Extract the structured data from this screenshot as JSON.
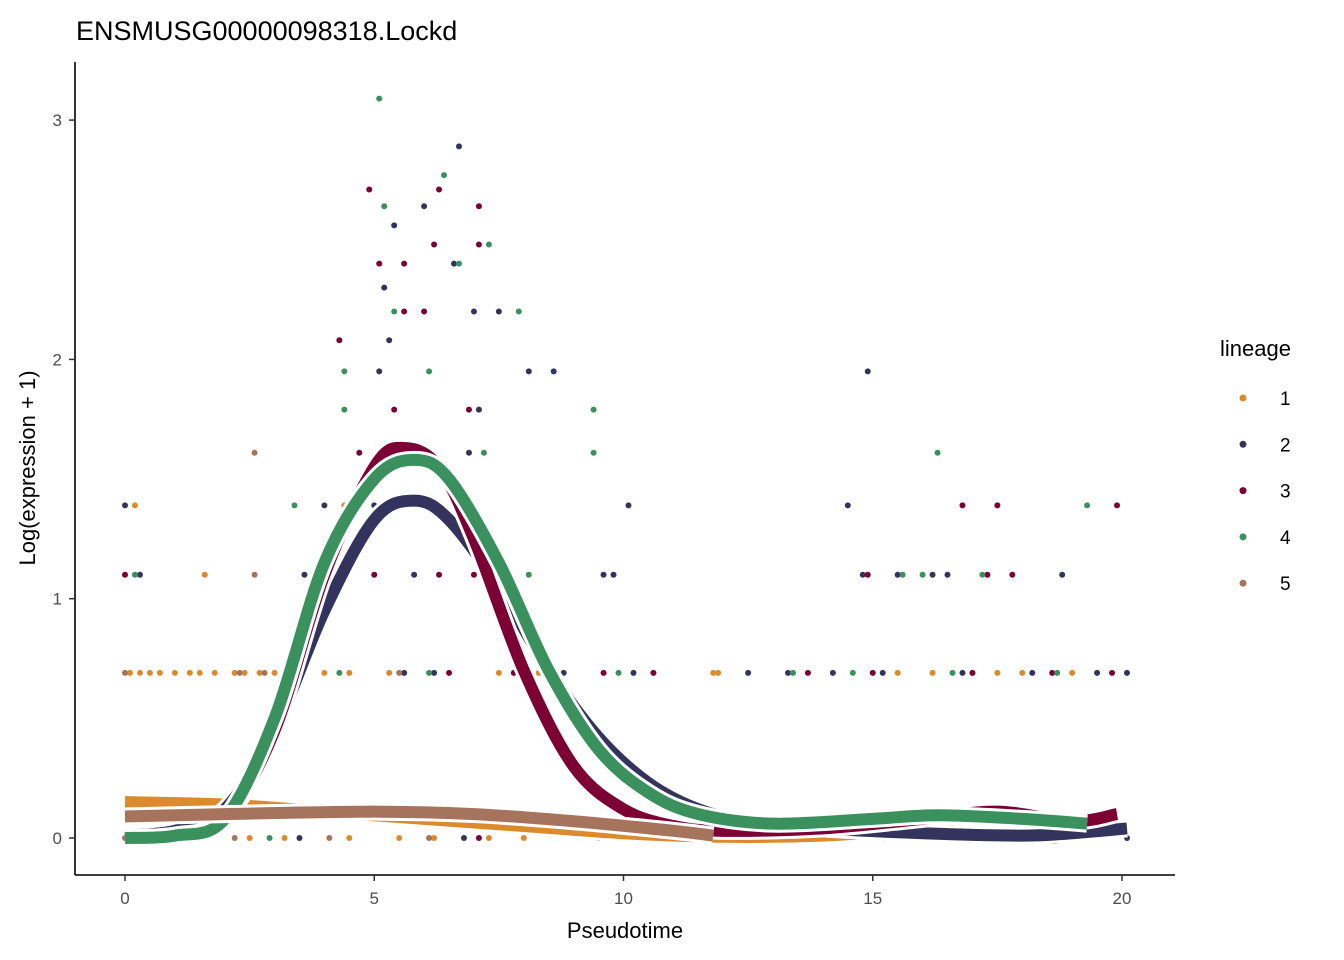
{
  "chart_data": {
    "type": "scatter",
    "title": "ENSMUSG00000098318.Lockd",
    "xlabel": "Pseudotime",
    "ylabel": "Log(expression + 1)",
    "xlim": [
      -1,
      21
    ],
    "ylim": [
      -0.15,
      3.25
    ],
    "xticks": [
      "0",
      "5",
      "10",
      "15",
      "20"
    ],
    "yticks": [
      "0",
      "1",
      "2",
      "3"
    ],
    "grid": false,
    "legend": {
      "title": "lineage",
      "placement": "right"
    },
    "series": [
      {
        "name": "1",
        "color": "#DD8A2E",
        "curve": [
          [
            0,
            0.15
          ],
          [
            2,
            0.14
          ],
          [
            4,
            0.11
          ],
          [
            6,
            0.08
          ],
          [
            8,
            0.05
          ],
          [
            10,
            0.02
          ],
          [
            12,
            0.005
          ],
          [
            14,
            0.01
          ],
          [
            16,
            0.035
          ],
          [
            17,
            0.02
          ],
          [
            18,
            0.005
          ],
          [
            18.7,
            0
          ]
        ],
        "points": [
          [
            0.1,
            0.69
          ],
          [
            0.3,
            0.69
          ],
          [
            0.5,
            0.69
          ],
          [
            0.7,
            0.69
          ],
          [
            1.0,
            0.69
          ],
          [
            1.3,
            0.69
          ],
          [
            1.5,
            0.69
          ],
          [
            1.8,
            0.69
          ],
          [
            2.2,
            0.69
          ],
          [
            2.4,
            0.69
          ],
          [
            2.7,
            0.69
          ],
          [
            3.0,
            0.69
          ],
          [
            4.0,
            0.69
          ],
          [
            4.5,
            0.69
          ],
          [
            5.3,
            0.69
          ],
          [
            7.5,
            0.69
          ],
          [
            8.3,
            0.69
          ],
          [
            11.8,
            0.69
          ],
          [
            11.9,
            0.69
          ],
          [
            15.5,
            0.69
          ],
          [
            16.2,
            0.69
          ],
          [
            17,
            0.69
          ],
          [
            17.5,
            0.69
          ],
          [
            18,
            0.69
          ],
          [
            19,
            0.69
          ],
          [
            1.6,
            1.1
          ],
          [
            0.2,
            1.39
          ],
          [
            4.4,
            1.39
          ],
          [
            0.5,
            0
          ],
          [
            1.5,
            0
          ],
          [
            2.5,
            0
          ],
          [
            3.2,
            0
          ],
          [
            4.5,
            0
          ],
          [
            5.5,
            0
          ],
          [
            6.2,
            0
          ],
          [
            7.3,
            0
          ],
          [
            8.0,
            0
          ],
          [
            10.5,
            0
          ],
          [
            15.8,
            0
          ],
          [
            18.5,
            0
          ]
        ]
      },
      {
        "name": "2",
        "color": "#33335E",
        "curve": [
          [
            0,
            0.01
          ],
          [
            1,
            0.03
          ],
          [
            2,
            0.12
          ],
          [
            3,
            0.45
          ],
          [
            4,
            0.95
          ],
          [
            5,
            1.33
          ],
          [
            5.8,
            1.41
          ],
          [
            6.5,
            1.33
          ],
          [
            7.5,
            1.05
          ],
          [
            8.5,
            0.7
          ],
          [
            9.5,
            0.42
          ],
          [
            10.5,
            0.23
          ],
          [
            11.5,
            0.12
          ],
          [
            12.5,
            0.07
          ],
          [
            14,
            0.04
          ],
          [
            16,
            0.02
          ],
          [
            18,
            0.01
          ],
          [
            19,
            0.02
          ],
          [
            20.1,
            0.04
          ]
        ],
        "points": [
          [
            0,
            1.39
          ],
          [
            4.0,
            1.39
          ],
          [
            5.0,
            1.39
          ],
          [
            10.1,
            1.39
          ],
          [
            14.5,
            1.39
          ],
          [
            0.3,
            1.1
          ],
          [
            3.6,
            1.1
          ],
          [
            3.8,
            1.1
          ],
          [
            4.1,
            1.1
          ],
          [
            5.8,
            1.1
          ],
          [
            7.6,
            1.1
          ],
          [
            9.6,
            1.1
          ],
          [
            9.8,
            1.1
          ],
          [
            14.8,
            1.1
          ],
          [
            15.5,
            1.1
          ],
          [
            16.2,
            1.1
          ],
          [
            16.5,
            1.1
          ],
          [
            18.8,
            1.1
          ],
          [
            5.4,
            2.56
          ],
          [
            6.7,
            2.89
          ],
          [
            6.0,
            2.64
          ],
          [
            5.2,
            2.3
          ],
          [
            5.1,
            1.95
          ],
          [
            6.6,
            2.4
          ],
          [
            7.0,
            2.2
          ],
          [
            7.5,
            2.2
          ],
          [
            8.1,
            1.95
          ],
          [
            8.6,
            1.95
          ],
          [
            14.9,
            1.95
          ],
          [
            7.1,
            1.79
          ],
          [
            5.3,
            2.08
          ],
          [
            6.9,
            1.61
          ],
          [
            5.6,
            0.69
          ],
          [
            6.2,
            0.69
          ],
          [
            8.8,
            0.69
          ],
          [
            10.2,
            0.69
          ],
          [
            12.5,
            0.69
          ],
          [
            13.3,
            0.69
          ],
          [
            14.2,
            0.69
          ],
          [
            15.2,
            0.69
          ],
          [
            16.8,
            0.69
          ],
          [
            18.2,
            0.69
          ],
          [
            19.5,
            0.69
          ],
          [
            20.1,
            0.69
          ],
          [
            0.8,
            0
          ],
          [
            3.5,
            0
          ],
          [
            6.8,
            0
          ],
          [
            9.5,
            0
          ],
          [
            14,
            0
          ],
          [
            20.1,
            0
          ]
        ]
      },
      {
        "name": "3",
        "color": "#7C0033",
        "curve": [
          [
            0,
            0
          ],
          [
            1,
            0.01
          ],
          [
            2,
            0.08
          ],
          [
            3,
            0.45
          ],
          [
            4,
            1.1
          ],
          [
            5,
            1.55
          ],
          [
            5.6,
            1.63
          ],
          [
            6.3,
            1.55
          ],
          [
            7,
            1.25
          ],
          [
            8,
            0.7
          ],
          [
            9,
            0.3
          ],
          [
            10,
            0.12
          ],
          [
            11,
            0.05
          ],
          [
            12,
            0.03
          ],
          [
            14,
            0.04
          ],
          [
            16,
            0.08
          ],
          [
            17.5,
            0.11
          ],
          [
            19,
            0.07
          ],
          [
            19.9,
            0.1
          ]
        ],
        "points": [
          [
            0,
            1.1
          ],
          [
            4.0,
            1.1
          ],
          [
            5.0,
            1.1
          ],
          [
            6.3,
            1.1
          ],
          [
            7.0,
            1.1
          ],
          [
            14.9,
            1.1
          ],
          [
            17.3,
            1.1
          ],
          [
            17.8,
            1.1
          ],
          [
            16.8,
            1.39
          ],
          [
            17.5,
            1.39
          ],
          [
            19.9,
            1.39
          ],
          [
            4.9,
            2.71
          ],
          [
            6.3,
            2.71
          ],
          [
            7.1,
            2.64
          ],
          [
            6.2,
            2.48
          ],
          [
            5.1,
            2.4
          ],
          [
            5.6,
            2.4
          ],
          [
            7.1,
            2.48
          ],
          [
            4.3,
            2.08
          ],
          [
            5.6,
            2.2
          ],
          [
            6.0,
            2.2
          ],
          [
            5.4,
            1.79
          ],
          [
            6.9,
            1.79
          ],
          [
            4.7,
            1.61
          ],
          [
            3.3,
            0.69
          ],
          [
            6.5,
            0.69
          ],
          [
            7.8,
            0.69
          ],
          [
            9.6,
            0.69
          ],
          [
            10.6,
            0.69
          ],
          [
            13.7,
            0.69
          ],
          [
            15.0,
            0.69
          ],
          [
            17.0,
            0.69
          ],
          [
            18.6,
            0.69
          ],
          [
            19.8,
            0.69
          ],
          [
            7.1,
            0
          ],
          [
            15.2,
            0
          ],
          [
            19.0,
            0
          ]
        ]
      },
      {
        "name": "4",
        "color": "#3A915E",
        "curve": [
          [
            0,
            0
          ],
          [
            1,
            0.01
          ],
          [
            2,
            0.08
          ],
          [
            3,
            0.5
          ],
          [
            4,
            1.15
          ],
          [
            5,
            1.5
          ],
          [
            5.8,
            1.58
          ],
          [
            6.5,
            1.5
          ],
          [
            7.5,
            1.15
          ],
          [
            8.5,
            0.7
          ],
          [
            9.5,
            0.37
          ],
          [
            10.5,
            0.19
          ],
          [
            11.5,
            0.1
          ],
          [
            13,
            0.06
          ],
          [
            15,
            0.08
          ],
          [
            16.3,
            0.095
          ],
          [
            18,
            0.08
          ],
          [
            19.3,
            0.06
          ]
        ],
        "points": [
          [
            5.1,
            3.09
          ],
          [
            6.4,
            2.77
          ],
          [
            5.2,
            2.64
          ],
          [
            7.3,
            2.48
          ],
          [
            6.7,
            2.4
          ],
          [
            5.4,
            2.2
          ],
          [
            7.9,
            2.2
          ],
          [
            4.4,
            1.95
          ],
          [
            9.4,
            1.79
          ],
          [
            9.4,
            1.61
          ],
          [
            16.3,
            1.61
          ],
          [
            19.3,
            1.39
          ],
          [
            3.4,
            1.39
          ],
          [
            0.2,
            1.1
          ],
          [
            8.1,
            1.1
          ],
          [
            15.6,
            1.1
          ],
          [
            16.0,
            1.1
          ],
          [
            17.2,
            1.1
          ],
          [
            7.2,
            1.61
          ],
          [
            6.1,
            1.95
          ],
          [
            4.4,
            1.79
          ],
          [
            4.3,
            0.69
          ],
          [
            6.1,
            0.69
          ],
          [
            9.9,
            0.69
          ],
          [
            13.4,
            0.69
          ],
          [
            14.6,
            0.69
          ],
          [
            16.6,
            0.69
          ],
          [
            18.7,
            0.69
          ],
          [
            2.9,
            0
          ],
          [
            12.8,
            0
          ]
        ]
      },
      {
        "name": "5",
        "color": "#A6735C",
        "curve": [
          [
            0,
            0.09
          ],
          [
            2,
            0.1
          ],
          [
            5,
            0.11
          ],
          [
            7,
            0.1
          ],
          [
            9,
            0.07
          ],
          [
            11,
            0.03
          ],
          [
            11.8,
            0.01
          ]
        ],
        "points": [
          [
            2.6,
            1.61
          ],
          [
            2.6,
            1.1
          ],
          [
            0,
            0.69
          ],
          [
            2.3,
            0.69
          ],
          [
            2.8,
            0.69
          ],
          [
            5.5,
            0.69
          ],
          [
            0,
            0
          ],
          [
            2.2,
            0
          ],
          [
            4.1,
            0
          ],
          [
            6.1,
            0
          ]
        ]
      }
    ]
  }
}
